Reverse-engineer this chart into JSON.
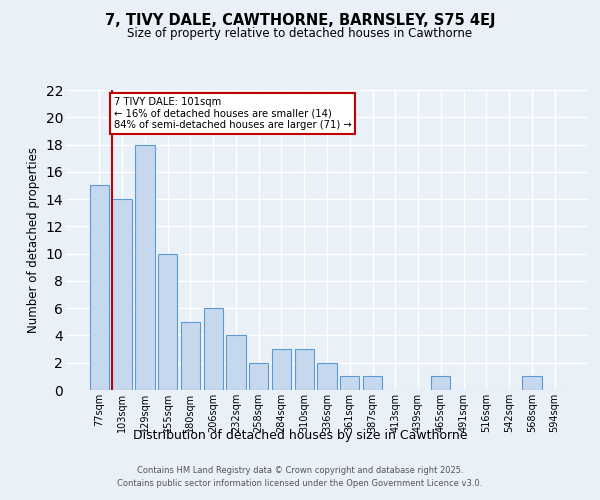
{
  "title": "7, TIVY DALE, CAWTHORNE, BARNSLEY, S75 4EJ",
  "subtitle": "Size of property relative to detached houses in Cawthorne",
  "xlabel": "Distribution of detached houses by size in Cawthorne",
  "ylabel": "Number of detached properties",
  "categories": [
    "77sqm",
    "103sqm",
    "129sqm",
    "155sqm",
    "180sqm",
    "206sqm",
    "232sqm",
    "258sqm",
    "284sqm",
    "310sqm",
    "336sqm",
    "361sqm",
    "387sqm",
    "413sqm",
    "439sqm",
    "465sqm",
    "491sqm",
    "516sqm",
    "542sqm",
    "568sqm",
    "594sqm"
  ],
  "values": [
    15,
    14,
    18,
    10,
    5,
    6,
    4,
    2,
    3,
    3,
    2,
    1,
    1,
    0,
    0,
    1,
    0,
    0,
    0,
    1,
    0
  ],
  "bar_color": "#c5d8ed",
  "bar_edge_color": "#5b9bd5",
  "highlight_bar_index": 1,
  "highlight_edge_color": "#c00000",
  "annotation_box_text": "7 TIVY DALE: 101sqm\n← 16% of detached houses are smaller (14)\n84% of semi-detached houses are larger (71) →",
  "annotation_box_edge_color": "#c00000",
  "ylim": [
    0,
    22
  ],
  "yticks": [
    0,
    2,
    4,
    6,
    8,
    10,
    12,
    14,
    16,
    18,
    20,
    22
  ],
  "background_color": "#eaf0f8",
  "plot_bg_color": "#eaf0f8",
  "grid_color": "#ffffff",
  "footer_line1": "Contains HM Land Registry data © Crown copyright and database right 2025.",
  "footer_line2": "Contains public sector information licensed under the Open Government Licence v3.0."
}
